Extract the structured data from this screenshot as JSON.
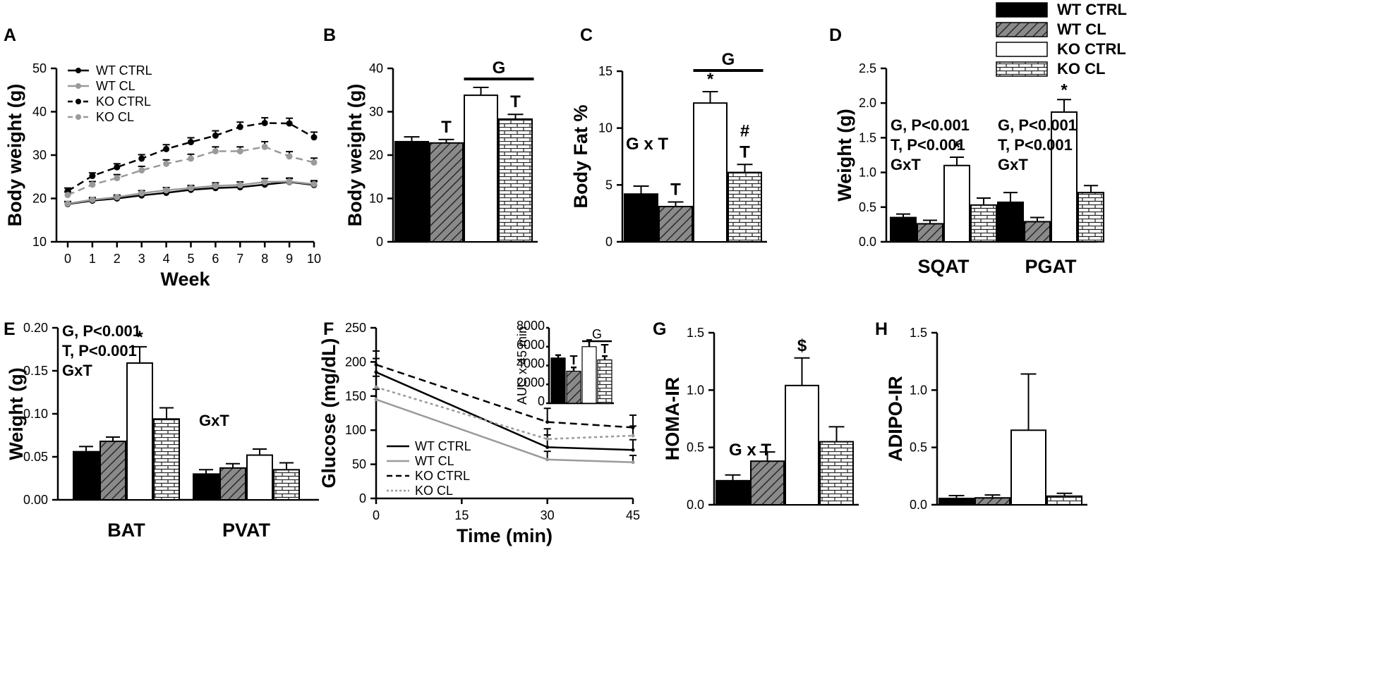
{
  "legend": {
    "entries": [
      {
        "label": "WT CTRL",
        "pattern": "solid"
      },
      {
        "label": "WT CL",
        "pattern": "hatch"
      },
      {
        "label": "KO CTRL",
        "pattern": "white"
      },
      {
        "label": "KO CL",
        "pattern": "brick"
      }
    ]
  },
  "colors": {
    "black": "#000000",
    "gray": "#9a9a9a",
    "hatch_bg": "#8a8a8a",
    "white": "#ffffff"
  },
  "chart_data": [
    {
      "panel": "A",
      "type": "line",
      "xlabel": "Week",
      "ylabel": "Body weight (g)",
      "ylim": [
        10,
        50
      ],
      "yticks": [
        "10",
        "20",
        "30",
        "40",
        "50"
      ],
      "x": [
        0,
        1,
        2,
        3,
        4,
        5,
        6,
        7,
        8,
        9,
        10
      ],
      "xticks": [
        "0",
        "1",
        "2",
        "3",
        "4",
        "5",
        "6",
        "7",
        "8",
        "9",
        "10"
      ],
      "series": [
        {
          "name": "WT CTRL",
          "style": "solid-black",
          "values": [
            18.7,
            19.5,
            20,
            20.7,
            21.3,
            22,
            22.4,
            22.6,
            23.2,
            23.8,
            23.1
          ],
          "err": [
            0.5,
            0.5,
            0.5,
            0.5,
            0.6,
            0.6,
            0.7,
            0.6,
            0.7,
            0.8,
            0.8
          ]
        },
        {
          "name": "WT CL",
          "style": "solid-gray",
          "values": [
            18.8,
            19.7,
            20.3,
            21.2,
            21.9,
            22.4,
            22.9,
            23.1,
            23.8,
            23.9,
            23.3
          ],
          "err": [
            0.5,
            0.5,
            0.5,
            0.6,
            0.6,
            0.6,
            0.7,
            0.7,
            0.8,
            0.8,
            0.8
          ]
        },
        {
          "name": "KO CTRL",
          "style": "dash-black",
          "values": [
            21.7,
            25.2,
            27.2,
            29.2,
            31.4,
            33,
            34.5,
            36.5,
            37.4,
            37.3,
            34.1
          ],
          "err": [
            0.7,
            0.7,
            0.8,
            0.9,
            1.0,
            1.0,
            1.1,
            1.1,
            1.2,
            1.2,
            1.2
          ]
        },
        {
          "name": "KO CL",
          "style": "dash-gray",
          "values": [
            20.8,
            23.2,
            24.7,
            26.5,
            28,
            29.2,
            30.9,
            30.9,
            31.9,
            29.7,
            28.3
          ],
          "err": [
            0.7,
            0.7,
            0.8,
            0.9,
            0.9,
            1.0,
            1.0,
            1.0,
            1.2,
            1.1,
            1.0
          ]
        }
      ]
    },
    {
      "panel": "B",
      "type": "bar",
      "ylabel": "Body weight (g)",
      "ylim": [
        0,
        40
      ],
      "yticks": [
        "0",
        "10",
        "20",
        "30",
        "40"
      ],
      "categories": [
        "WT CTRL",
        "WT CL",
        "KO CTRL",
        "KO CL"
      ],
      "values": [
        23.1,
        22.8,
        33.8,
        28.3
      ],
      "err": [
        1.1,
        0.8,
        1.8,
        1.1
      ],
      "bar_labels": [
        "",
        "T",
        "",
        "T"
      ],
      "bracket_label": "G"
    },
    {
      "panel": "C",
      "type": "bar",
      "ylabel": "Body Fat %",
      "ylim": [
        0,
        15
      ],
      "yticks": [
        "0",
        "5",
        "10",
        "15"
      ],
      "categories": [
        "WT CTRL",
        "WT CL",
        "KO CTRL",
        "KO CL"
      ],
      "values": [
        4.2,
        3.1,
        12.2,
        6.1
      ],
      "err": [
        0.7,
        0.4,
        1.0,
        0.7
      ],
      "bar_labels": [
        "",
        "T",
        "*",
        "#\nT"
      ],
      "bracket_label": "G",
      "annotation": "G x T"
    },
    {
      "panel": "D",
      "type": "bar",
      "ylabel": "Weight (g)",
      "ylim": [
        0,
        2.5
      ],
      "yticks": [
        "0.0",
        "0.5",
        "1.0",
        "1.5",
        "2.0",
        "2.5"
      ],
      "groups": [
        "SQAT",
        "PGAT"
      ],
      "series": [
        {
          "name": "WT CTRL",
          "values": [
            0.35,
            0.57
          ],
          "err": [
            0.05,
            0.14
          ]
        },
        {
          "name": "WT CL",
          "values": [
            0.26,
            0.29
          ],
          "err": [
            0.05,
            0.06
          ]
        },
        {
          "name": "KO CTRL",
          "values": [
            1.1,
            1.87
          ],
          "err": [
            0.12,
            0.18
          ]
        },
        {
          "name": "KO CL",
          "values": [
            0.53,
            0.71
          ],
          "err": [
            0.1,
            0.1
          ]
        }
      ],
      "bar_labels": [
        [
          "",
          "",
          "*",
          ""
        ],
        [
          "",
          "",
          "*",
          ""
        ]
      ],
      "annotations": [
        [
          "G, P<0.001",
          "T, P<0.001",
          "GxT"
        ],
        [
          "G, P<0.001",
          "T, P<0.001",
          "GxT"
        ]
      ]
    },
    {
      "panel": "E",
      "type": "bar",
      "ylabel": "Weight (g)",
      "ylim": [
        0,
        0.2
      ],
      "yticks": [
        "0.00",
        "0.05",
        "0.10",
        "0.15",
        "0.20"
      ],
      "groups": [
        "BAT",
        "PVAT"
      ],
      "series": [
        {
          "name": "WT CTRL",
          "values": [
            0.056,
            0.03
          ],
          "err": [
            0.006,
            0.005
          ]
        },
        {
          "name": "WT CL",
          "values": [
            0.068,
            0.037
          ],
          "err": [
            0.005,
            0.005
          ]
        },
        {
          "name": "KO CTRL",
          "values": [
            0.159,
            0.052
          ],
          "err": [
            0.019,
            0.007
          ]
        },
        {
          "name": "KO CL",
          "values": [
            0.094,
            0.035
          ],
          "err": [
            0.013,
            0.008
          ]
        }
      ],
      "bar_labels": [
        [
          "",
          "",
          "*",
          ""
        ],
        [
          "",
          "",
          "",
          ""
        ]
      ],
      "annotations": [
        [
          "G, P<0.001",
          "T, P<0.001",
          "GxT"
        ],
        [
          "GxT"
        ]
      ]
    },
    {
      "panel": "F",
      "type": "line",
      "xlabel": "Time (min)",
      "ylabel": "Glucose (mg/dL)",
      "ylim": [
        0,
        250
      ],
      "yticks": [
        "0",
        "50",
        "100",
        "150",
        "200",
        "250"
      ],
      "x": [
        0,
        30,
        45
      ],
      "xticks": [
        "0",
        "15",
        "30",
        "45"
      ],
      "series": [
        {
          "name": "WT CTRL",
          "style": "solid-black",
          "values": [
            185,
            75,
            71
          ],
          "err": [
            20,
            18,
            15
          ]
        },
        {
          "name": "WT CL",
          "style": "solid-gray",
          "values": [
            145,
            57,
            53
          ],
          "err": [
            15,
            12,
            10
          ]
        },
        {
          "name": "KO CTRL",
          "style": "dash-black",
          "values": [
            196,
            112,
            104
          ],
          "err": [
            20,
            20,
            18
          ]
        },
        {
          "name": "KO CL",
          "style": "dot-gray",
          "values": [
            163,
            87,
            92
          ],
          "err": [
            16,
            15,
            14
          ]
        }
      ],
      "inset": {
        "type": "bar",
        "ylabel": "AUC x 45 min",
        "ylim": [
          0,
          8000
        ],
        "yticks": [
          "0",
          "2000",
          "4000",
          "6000",
          "8000"
        ],
        "categories": [
          "WT CTRL",
          "WT CL",
          "KO CTRL",
          "KO CL"
        ],
        "values": [
          4800,
          3400,
          6000,
          4600
        ],
        "err": [
          300,
          400,
          700,
          400
        ],
        "bar_labels": [
          "",
          "T",
          "",
          "T"
        ],
        "bracket_label": "G"
      }
    },
    {
      "panel": "G",
      "type": "bar",
      "ylabel": "HOMA-IR",
      "ylim": [
        0,
        1.5
      ],
      "yticks": [
        "0.0",
        "0.5",
        "1.0",
        "1.5"
      ],
      "categories": [
        "WT CTRL",
        "WT CL",
        "KO CTRL",
        "KO CL"
      ],
      "values": [
        0.21,
        0.38,
        1.04,
        0.55
      ],
      "err": [
        0.05,
        0.08,
        0.24,
        0.13
      ],
      "bar_labels": [
        "",
        "",
        "$",
        ""
      ],
      "annotation": "G x T"
    },
    {
      "panel": "H",
      "type": "bar",
      "ylabel": "ADIPO-IR",
      "ylim": [
        0,
        1.5
      ],
      "yticks": [
        "0.0",
        "0.5",
        "1.0",
        "1.5"
      ],
      "categories": [
        "WT CTRL",
        "WT CL",
        "KO CTRL",
        "KO CL"
      ],
      "values": [
        0.055,
        0.06,
        0.65,
        0.075
      ],
      "err": [
        0.025,
        0.025,
        0.49,
        0.025
      ],
      "bar_labels": [
        "",
        "",
        "",
        ""
      ]
    }
  ]
}
